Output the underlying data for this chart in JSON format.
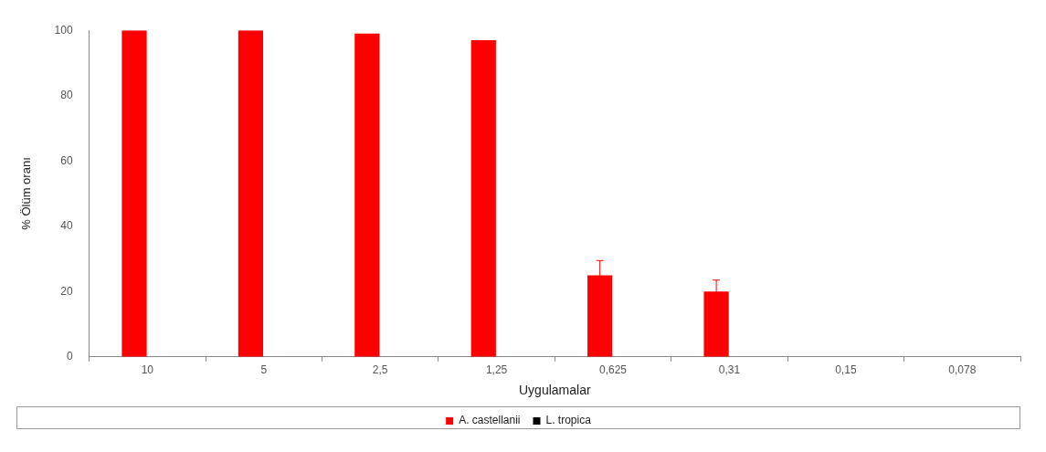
{
  "chart_data": {
    "type": "bar",
    "xlabel": "Uygulamalar",
    "ylabel": "% Ölüm oranı",
    "categories": [
      "10",
      "5",
      "2,5",
      "1,25",
      "0,625",
      "0,31",
      "0,15",
      "0,078"
    ],
    "series": [
      {
        "name": "A. castellanii",
        "color": "#ff0000",
        "values": [
          100,
          100,
          99,
          97,
          25,
          20,
          0,
          0
        ],
        "errors": [
          null,
          null,
          null,
          null,
          4.5,
          3.5,
          null,
          null
        ]
      },
      {
        "name": "L. tropica",
        "color": "#000000",
        "values": [
          0,
          0,
          0,
          0,
          0,
          0,
          0,
          0
        ]
      }
    ],
    "ylim": [
      0,
      100
    ],
    "yticks": [
      0,
      20,
      40,
      60,
      80,
      100
    ],
    "grid": false,
    "legend": "bottom"
  }
}
